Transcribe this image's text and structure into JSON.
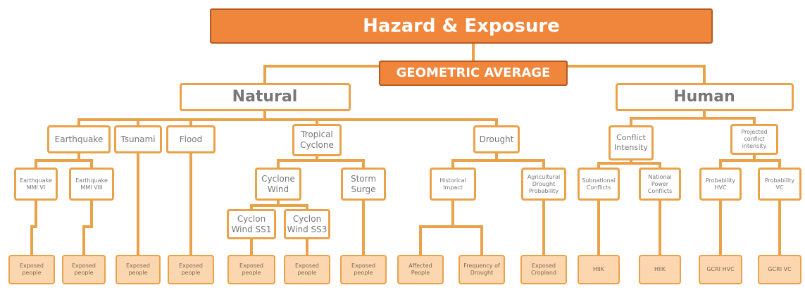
{
  "header": {
    "title": "Hazard & Exposure",
    "method": "GEOMETRIC AVERAGE"
  },
  "nodes": [
    {
      "label": "Natural"
    },
    {
      "label": "Human"
    },
    {
      "label": "Earthquake"
    },
    {
      "label": "Tsunami"
    },
    {
      "label": "Flood"
    },
    {
      "label": "Tropical Cyclone"
    },
    {
      "label": "Drought"
    },
    {
      "label": "Conflict Intensity"
    },
    {
      "label": "Projected conflict intensity"
    },
    {
      "label": "Earthquake MMI VI"
    },
    {
      "label": "Earthquake MMI VIII"
    },
    {
      "label": "Cyclone Wind"
    },
    {
      "label": "Storm Surge"
    },
    {
      "label": "Historical Impact"
    },
    {
      "label": "Agricultural Drought Probability"
    },
    {
      "label": "Subnational Conflicts"
    },
    {
      "label": "National Power Conflicts"
    },
    {
      "label": "Probability HVC"
    },
    {
      "label": "Probability VC"
    },
    {
      "label": "Cyclon Wind SS1"
    },
    {
      "label": "Cyclon Wind SS3"
    },
    {
      "label": "Exposed people"
    },
    {
      "label": "Exposed people"
    },
    {
      "label": "Exposed people"
    },
    {
      "label": "Exposed people"
    },
    {
      "label": "Exposed people"
    },
    {
      "label": "Exposed people"
    },
    {
      "label": "Exposed people"
    },
    {
      "label": "Affected People"
    },
    {
      "label": "Frequency of Drought"
    },
    {
      "label": "Exposed Cropland"
    },
    {
      "label": "HIIK"
    },
    {
      "label": "HIIK"
    },
    {
      "label": "GCRI HVC"
    },
    {
      "label": "GCRI VC"
    }
  ]
}
